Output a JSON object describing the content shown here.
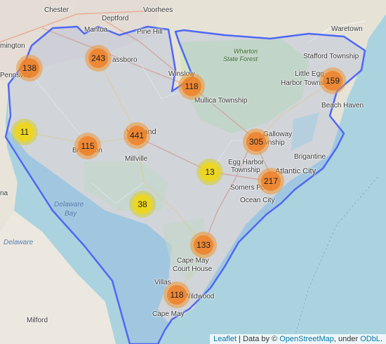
{
  "map": {
    "places": [
      {
        "name": "Chester",
        "cls": ""
      },
      {
        "name": "Deptford",
        "cls": ""
      },
      {
        "name": "Voorhees",
        "cls": ""
      },
      {
        "name": "mington",
        "cls": ""
      },
      {
        "name": "Mantua",
        "cls": ""
      },
      {
        "name": "Pine Hill",
        "cls": ""
      },
      {
        "name": "Waretown",
        "cls": ""
      },
      {
        "name": "assboro",
        "cls": ""
      },
      {
        "name": "Wharton",
        "cls": "forest"
      },
      {
        "name": "State Forest",
        "cls": "forest"
      },
      {
        "name": "Stafford Township",
        "cls": ""
      },
      {
        "name": "Pennsville",
        "cls": ""
      },
      {
        "name": "Winslow",
        "cls": ""
      },
      {
        "name": "Little Egg",
        "cls": ""
      },
      {
        "name": "Harbor Township",
        "cls": ""
      },
      {
        "name": "Mullica Township",
        "cls": ""
      },
      {
        "name": "Beach Haven",
        "cls": ""
      },
      {
        "name": "Vineland",
        "cls": "big"
      },
      {
        "name": "Galloway",
        "cls": ""
      },
      {
        "name": "Township",
        "cls": ""
      },
      {
        "name": "Bridgeton",
        "cls": ""
      },
      {
        "name": "Millville",
        "cls": ""
      },
      {
        "name": "Brigantine",
        "cls": ""
      },
      {
        "name": "Egg Harbor",
        "cls": ""
      },
      {
        "name": "Township",
        "cls": ""
      },
      {
        "name": "Atlantic City",
        "cls": "big"
      },
      {
        "name": "Somers Point",
        "cls": ""
      },
      {
        "name": "Ocean City",
        "cls": ""
      },
      {
        "name": "Delaware",
        "cls": "water"
      },
      {
        "name": "Bay",
        "cls": "water"
      },
      {
        "name": "Delaware",
        "cls": "water"
      },
      {
        "name": "Cape May",
        "cls": ""
      },
      {
        "name": "Court House",
        "cls": ""
      },
      {
        "name": "Villas",
        "cls": ""
      },
      {
        "name": "Wildwood",
        "cls": ""
      },
      {
        "name": "Cape May",
        "cls": ""
      },
      {
        "name": "Milford",
        "cls": ""
      },
      {
        "name": "na",
        "cls": ""
      }
    ],
    "clusters": [
      {
        "count": "138",
        "size": "medium"
      },
      {
        "count": "243",
        "size": "medium"
      },
      {
        "count": "118",
        "size": "medium"
      },
      {
        "count": "159",
        "size": "medium"
      },
      {
        "count": "11",
        "size": "small"
      },
      {
        "count": "441",
        "size": "medium"
      },
      {
        "count": "115",
        "size": "medium"
      },
      {
        "count": "305",
        "size": "medium"
      },
      {
        "count": "13",
        "size": "small"
      },
      {
        "count": "217",
        "size": "medium"
      },
      {
        "count": "38",
        "size": "small"
      },
      {
        "count": "133",
        "size": "medium"
      },
      {
        "count": "118",
        "size": "medium"
      }
    ],
    "boundary_color": "#4f68f5",
    "water_color": "#aad3df",
    "land_color": "#eae6dd"
  },
  "attribution": {
    "leaflet": "Leaflet",
    "sep1": " | Data by © ",
    "osm": "OpenStreetMap",
    "sep2": ", under ",
    "odbl": "ODbL",
    "end": "."
  }
}
